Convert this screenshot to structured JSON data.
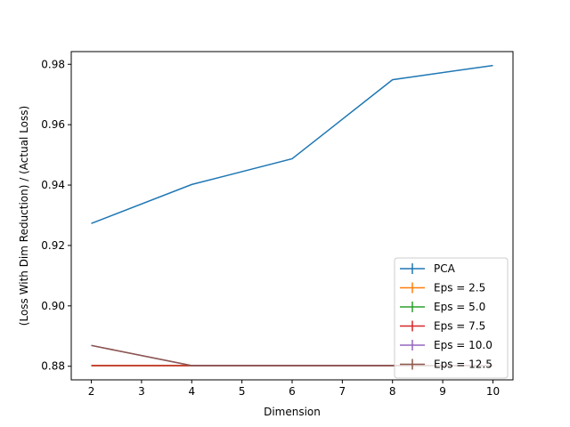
{
  "chart_data": {
    "type": "line",
    "title": "",
    "xlabel": "Dimension",
    "ylabel": "(Loss With Dim Reduction) / (Actual Loss)",
    "x": [
      2,
      4,
      6,
      8,
      10
    ],
    "xlim": [
      1.6,
      10.4
    ],
    "ylim": [
      0.8755,
      0.9842
    ],
    "xticks": [
      2,
      3,
      4,
      5,
      6,
      7,
      8,
      9,
      10
    ],
    "yticks": [
      0.88,
      0.9,
      0.92,
      0.94,
      0.96,
      0.98
    ],
    "grid": false,
    "legend_position": "bottom-right",
    "series": [
      {
        "name": "PCA",
        "color": "#1f77b4",
        "values": [
          0.9273,
          0.9402,
          0.9487,
          0.9749,
          0.9796
        ]
      },
      {
        "name": "Eps = 2.5",
        "color": "#ff7f0e",
        "values": [
          0.8802,
          0.8802,
          0.8802,
          0.8802,
          0.8802
        ]
      },
      {
        "name": "Eps = 5.0",
        "color": "#2ca02c",
        "values": [
          0.8802,
          0.8802,
          0.8802,
          0.8802,
          0.8802
        ]
      },
      {
        "name": "Eps = 7.5",
        "color": "#d62728",
        "values": [
          0.8802,
          0.8802,
          0.8802,
          0.8802,
          0.8802
        ]
      },
      {
        "name": "Eps = 10.0",
        "color": "#9467bd",
        "values": [
          0.8869,
          0.8802,
          0.8802,
          0.8802,
          0.8802
        ]
      },
      {
        "name": "Eps = 12.5",
        "color": "#8c564b",
        "values": [
          0.8869,
          0.8802,
          0.8802,
          0.8802,
          0.8802
        ]
      }
    ]
  }
}
